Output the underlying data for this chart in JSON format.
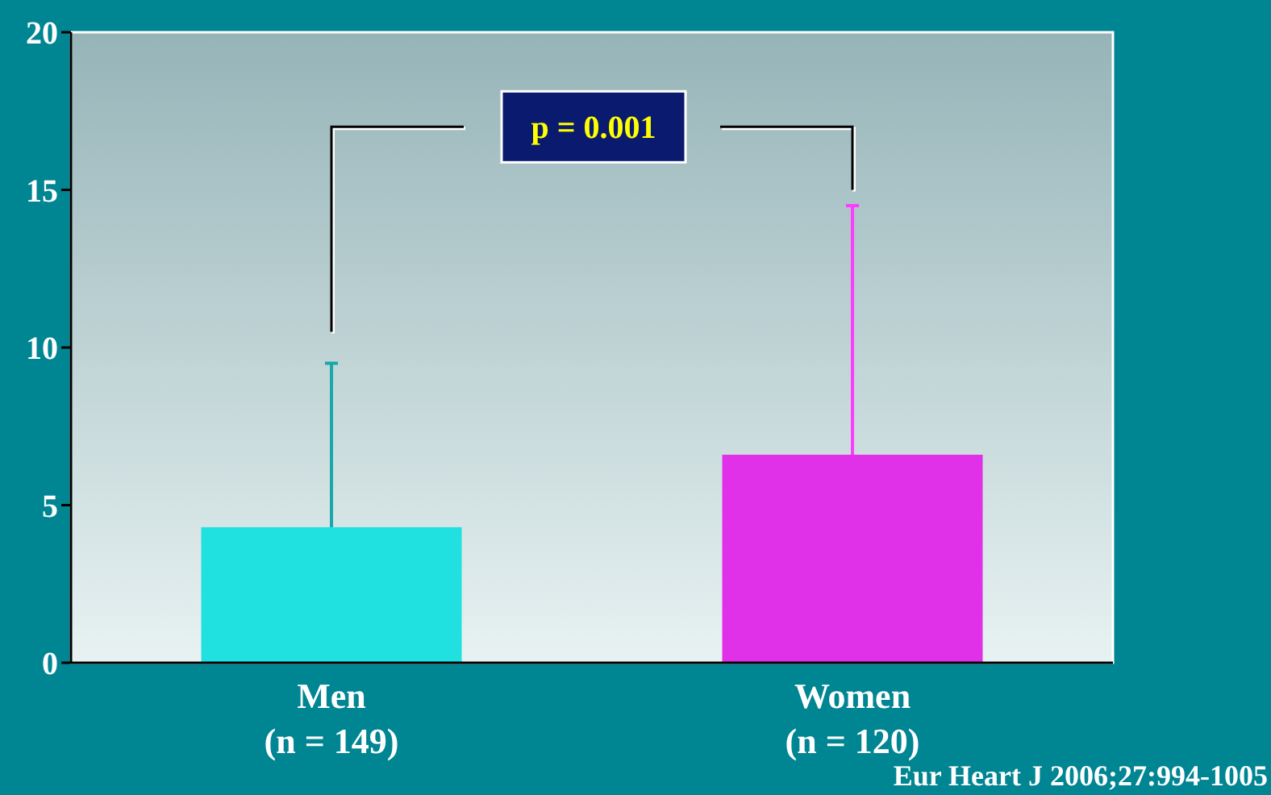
{
  "chart_data": {
    "type": "bar",
    "categories": [
      "Men\n(n = 149)",
      "Women\n(n = 120)"
    ],
    "values": [
      4.3,
      6.6
    ],
    "colors": [
      "#20e0e0",
      "#e030e8"
    ],
    "errors": [
      [
        4.3,
        9.5
      ],
      [
        6.6,
        14.5
      ]
    ],
    "ylim": [
      0,
      20
    ],
    "yticks": [
      0,
      5,
      10,
      15,
      20
    ],
    "grid": false,
    "annotations": [
      "p = 0.001",
      "Eur Heart J 2006;27:994-1005"
    ]
  }
}
